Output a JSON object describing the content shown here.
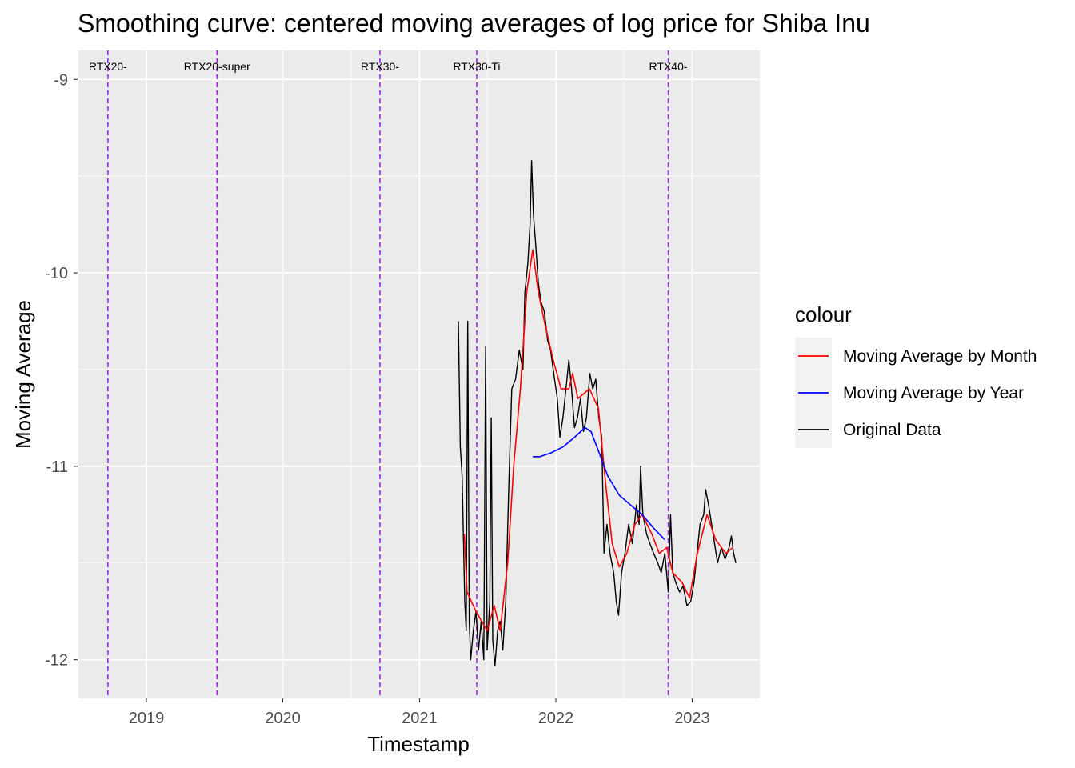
{
  "chart_data": {
    "type": "line",
    "title": "Smoothing curve: centered moving averages of log price for Shiba Inu",
    "xlabel": "Timestamp",
    "ylabel": "Moving Average",
    "x_ticks": [
      "2019",
      "2020",
      "2021",
      "2022",
      "2023"
    ],
    "y_ticks": [
      "-9",
      "-10",
      "-11",
      "-12"
    ],
    "xlim": [
      "2018-07-01",
      "2023-07-01"
    ],
    "ylim": [
      -12.2,
      -8.85
    ],
    "grid": true,
    "legend": {
      "title": "colour",
      "placement": "right",
      "entries": [
        {
          "label": "Moving Average by Month",
          "color": "#ff0000"
        },
        {
          "label": "Moving Average by Year",
          "color": "#0000ff"
        },
        {
          "label": "Original Data",
          "color": "#000000"
        }
      ]
    },
    "vertical_lines": [
      {
        "label": "RTX20-",
        "date": "2018-09-20",
        "color": "#a020f0"
      },
      {
        "label": "RTX20-super",
        "date": "2019-07-09",
        "color": "#a020f0"
      },
      {
        "label": "RTX30-",
        "date": "2020-09-17",
        "color": "#a020f0"
      },
      {
        "label": "RTX30-Ti",
        "date": "2021-06-03",
        "color": "#a020f0"
      },
      {
        "label": "RTX40-",
        "date": "2022-10-29",
        "color": "#a020f0"
      }
    ],
    "series": [
      {
        "name": "Original Data",
        "color": "#000000",
        "points": [
          [
            "2021-04-15",
            -10.25
          ],
          [
            "2021-04-20",
            -10.9
          ],
          [
            "2021-04-25",
            -11.05
          ],
          [
            "2021-05-02",
            -11.7
          ],
          [
            "2021-05-06",
            -11.85
          ],
          [
            "2021-05-10",
            -10.25
          ],
          [
            "2021-05-14",
            -11.8
          ],
          [
            "2021-05-18",
            -12.0
          ],
          [
            "2021-05-25",
            -11.85
          ],
          [
            "2021-06-01",
            -11.75
          ],
          [
            "2021-06-08",
            -11.95
          ],
          [
            "2021-06-15",
            -11.8
          ],
          [
            "2021-06-22",
            -12.0
          ],
          [
            "2021-06-27",
            -10.38
          ],
          [
            "2021-07-01",
            -11.95
          ],
          [
            "2021-07-08",
            -11.7
          ],
          [
            "2021-07-12",
            -10.75
          ],
          [
            "2021-07-16",
            -11.9
          ],
          [
            "2021-07-22",
            -12.03
          ],
          [
            "2021-07-29",
            -11.85
          ],
          [
            "2021-08-05",
            -11.8
          ],
          [
            "2021-08-12",
            -11.95
          ],
          [
            "2021-08-20",
            -11.7
          ],
          [
            "2021-08-28",
            -11.1
          ],
          [
            "2021-09-05",
            -10.6
          ],
          [
            "2021-09-15",
            -10.55
          ],
          [
            "2021-09-25",
            -10.4
          ],
          [
            "2021-10-05",
            -10.5
          ],
          [
            "2021-10-10",
            -10.1
          ],
          [
            "2021-10-18",
            -9.95
          ],
          [
            "2021-10-24",
            -9.75
          ],
          [
            "2021-10-28",
            -9.42
          ],
          [
            "2021-11-02",
            -9.7
          ],
          [
            "2021-11-08",
            -9.85
          ],
          [
            "2021-11-15",
            -10.05
          ],
          [
            "2021-11-22",
            -10.15
          ],
          [
            "2021-12-01",
            -10.2
          ],
          [
            "2021-12-10",
            -10.35
          ],
          [
            "2021-12-18",
            -10.4
          ],
          [
            "2021-12-25",
            -10.5
          ],
          [
            "2022-01-05",
            -10.65
          ],
          [
            "2022-01-12",
            -10.85
          ],
          [
            "2022-01-20",
            -10.75
          ],
          [
            "2022-01-28",
            -10.6
          ],
          [
            "2022-02-05",
            -10.45
          ],
          [
            "2022-02-12",
            -10.6
          ],
          [
            "2022-02-20",
            -10.8
          ],
          [
            "2022-02-28",
            -10.75
          ],
          [
            "2022-03-08",
            -10.65
          ],
          [
            "2022-03-16",
            -10.82
          ],
          [
            "2022-03-24",
            -10.75
          ],
          [
            "2022-04-02",
            -10.52
          ],
          [
            "2022-04-10",
            -10.6
          ],
          [
            "2022-04-18",
            -10.55
          ],
          [
            "2022-04-26",
            -10.75
          ],
          [
            "2022-05-04",
            -10.85
          ],
          [
            "2022-05-10",
            -11.45
          ],
          [
            "2022-05-18",
            -11.3
          ],
          [
            "2022-05-26",
            -11.45
          ],
          [
            "2022-06-05",
            -11.55
          ],
          [
            "2022-06-12",
            -11.7
          ],
          [
            "2022-06-18",
            -11.77
          ],
          [
            "2022-06-26",
            -11.55
          ],
          [
            "2022-07-05",
            -11.45
          ],
          [
            "2022-07-15",
            -11.3
          ],
          [
            "2022-07-25",
            -11.4
          ],
          [
            "2022-08-05",
            -11.2
          ],
          [
            "2022-08-12",
            -11.3
          ],
          [
            "2022-08-16",
            -11.0
          ],
          [
            "2022-08-22",
            -11.25
          ],
          [
            "2022-09-01",
            -11.35
          ],
          [
            "2022-09-10",
            -11.4
          ],
          [
            "2022-09-20",
            -11.45
          ],
          [
            "2022-10-01",
            -11.5
          ],
          [
            "2022-10-10",
            -11.55
          ],
          [
            "2022-10-20",
            -11.45
          ],
          [
            "2022-10-29",
            -11.65
          ],
          [
            "2022-11-04",
            -11.25
          ],
          [
            "2022-11-10",
            -11.55
          ],
          [
            "2022-11-18",
            -11.6
          ],
          [
            "2022-11-28",
            -11.65
          ],
          [
            "2022-12-08",
            -11.62
          ],
          [
            "2022-12-18",
            -11.72
          ],
          [
            "2022-12-28",
            -11.7
          ],
          [
            "2023-01-06",
            -11.6
          ],
          [
            "2023-01-14",
            -11.45
          ],
          [
            "2023-01-22",
            -11.3
          ],
          [
            "2023-02-01",
            -11.25
          ],
          [
            "2023-02-06",
            -11.12
          ],
          [
            "2023-02-14",
            -11.2
          ],
          [
            "2023-02-22",
            -11.3
          ],
          [
            "2023-03-02",
            -11.4
          ],
          [
            "2023-03-10",
            -11.5
          ],
          [
            "2023-03-20",
            -11.42
          ],
          [
            "2023-03-30",
            -11.48
          ],
          [
            "2023-04-10",
            -11.42
          ],
          [
            "2023-04-16",
            -11.36
          ],
          [
            "2023-04-22",
            -11.45
          ],
          [
            "2023-04-28",
            -11.5
          ]
        ]
      },
      {
        "name": "Moving Average by Month",
        "color": "#ff0000",
        "points": [
          [
            "2021-05-01",
            -11.35
          ],
          [
            "2021-05-08",
            -11.65
          ],
          [
            "2021-06-01",
            -11.75
          ],
          [
            "2021-07-01",
            -11.85
          ],
          [
            "2021-07-20",
            -11.72
          ],
          [
            "2021-08-05",
            -11.85
          ],
          [
            "2021-08-25",
            -11.5
          ],
          [
            "2021-09-10",
            -11.0
          ],
          [
            "2021-09-28",
            -10.6
          ],
          [
            "2021-10-15",
            -10.1
          ],
          [
            "2021-10-31",
            -9.88
          ],
          [
            "2021-11-15",
            -10.1
          ],
          [
            "2021-12-01",
            -10.25
          ],
          [
            "2021-12-25",
            -10.45
          ],
          [
            "2022-01-15",
            -10.6
          ],
          [
            "2022-02-05",
            -10.6
          ],
          [
            "2022-02-15",
            -10.52
          ],
          [
            "2022-03-01",
            -10.65
          ],
          [
            "2022-04-01",
            -10.6
          ],
          [
            "2022-04-25",
            -10.7
          ],
          [
            "2022-05-15",
            -11.1
          ],
          [
            "2022-06-01",
            -11.4
          ],
          [
            "2022-06-20",
            -11.52
          ],
          [
            "2022-07-10",
            -11.45
          ],
          [
            "2022-08-01",
            -11.3
          ],
          [
            "2022-08-20",
            -11.25
          ],
          [
            "2022-09-15",
            -11.35
          ],
          [
            "2022-10-05",
            -11.45
          ],
          [
            "2022-10-25",
            -11.42
          ],
          [
            "2022-11-10",
            -11.55
          ],
          [
            "2022-12-05",
            -11.6
          ],
          [
            "2022-12-25",
            -11.68
          ],
          [
            "2023-01-15",
            -11.45
          ],
          [
            "2023-02-10",
            -11.25
          ],
          [
            "2023-03-05",
            -11.38
          ],
          [
            "2023-04-01",
            -11.45
          ],
          [
            "2023-04-20",
            -11.42
          ]
        ]
      },
      {
        "name": "Moving Average by Year",
        "color": "#0000ff",
        "points": [
          [
            "2021-10-31",
            -10.95
          ],
          [
            "2021-11-20",
            -10.95
          ],
          [
            "2021-12-20",
            -10.93
          ],
          [
            "2022-01-20",
            -10.9
          ],
          [
            "2022-02-20",
            -10.85
          ],
          [
            "2022-03-20",
            -10.8
          ],
          [
            "2022-04-05",
            -10.82
          ],
          [
            "2022-04-25",
            -10.92
          ],
          [
            "2022-05-20",
            -11.05
          ],
          [
            "2022-06-20",
            -11.15
          ],
          [
            "2022-07-20",
            -11.2
          ],
          [
            "2022-08-20",
            -11.25
          ],
          [
            "2022-09-20",
            -11.32
          ],
          [
            "2022-10-20",
            -11.38
          ]
        ]
      }
    ]
  }
}
